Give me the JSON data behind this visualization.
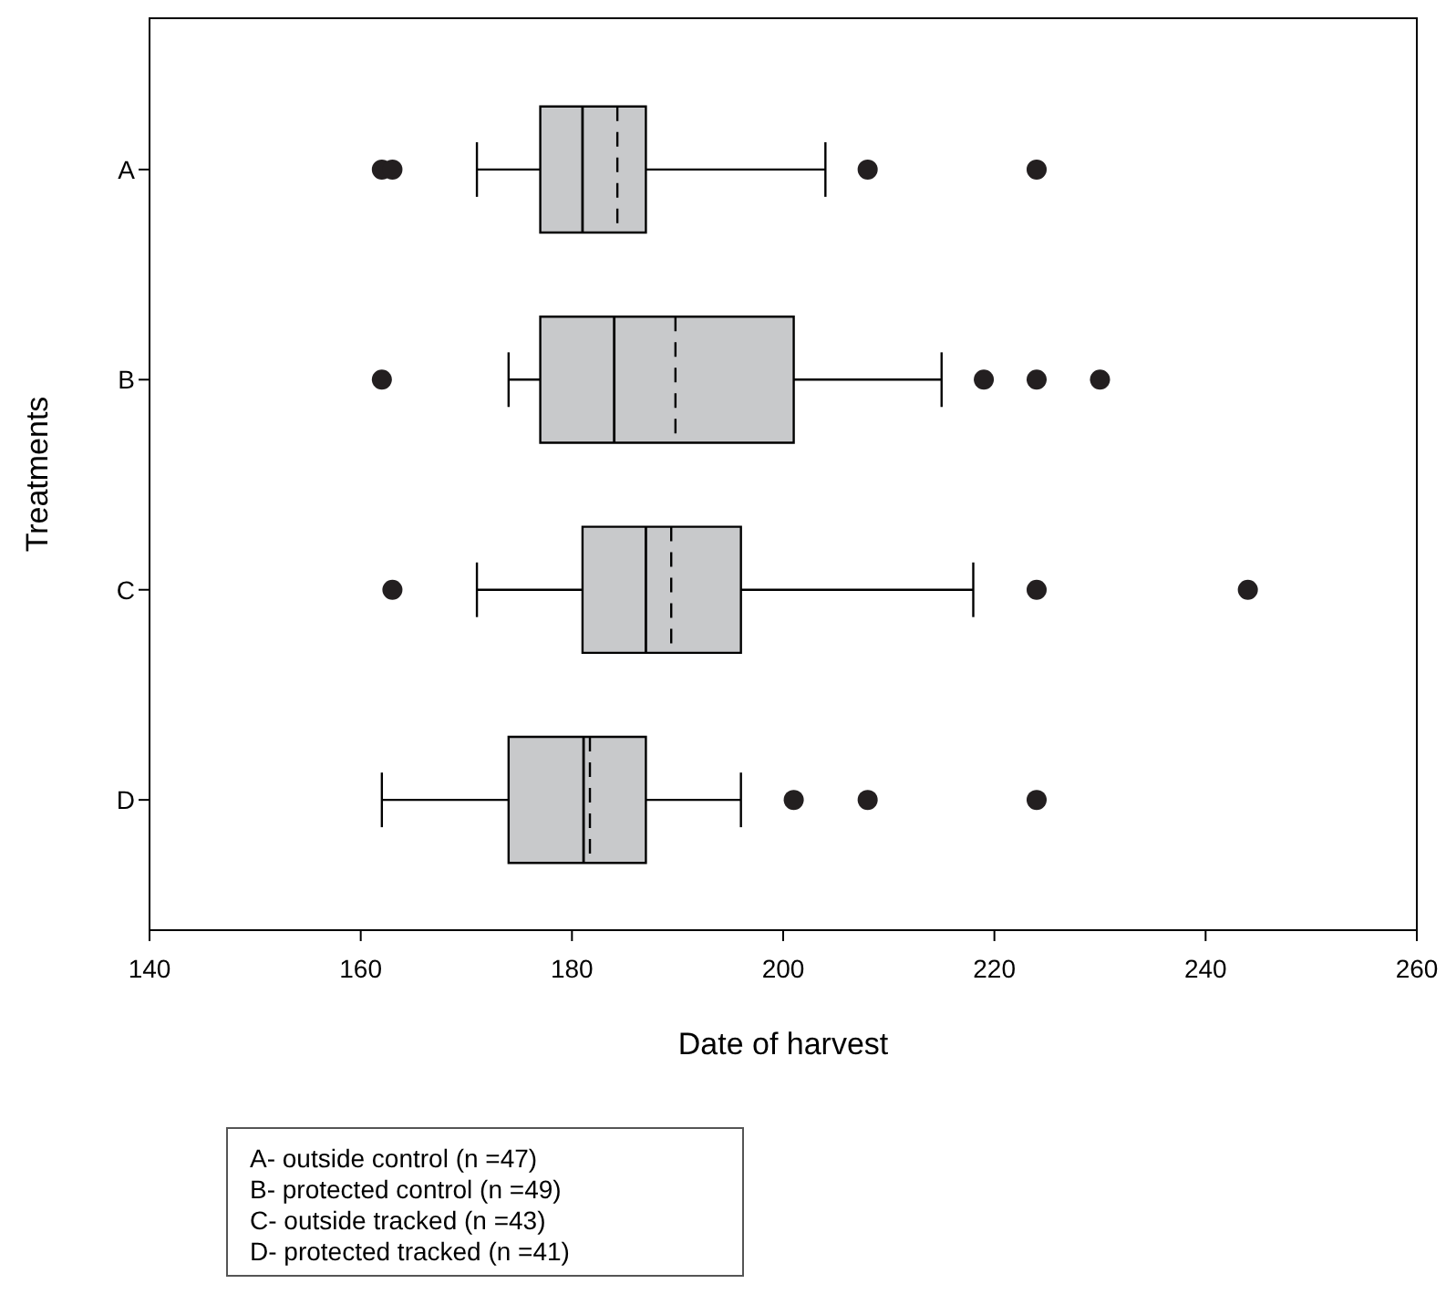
{
  "chart_data": {
    "type": "box",
    "orientation": "horizontal",
    "xlabel": "Date of harvest",
    "ylabel": "Treatments",
    "categories": [
      "A",
      "B",
      "C",
      "D"
    ],
    "color": "#c8c9cb",
    "boxes": [
      {
        "low": 171,
        "q1": 177,
        "median": 181,
        "q3": 187,
        "high": 204,
        "mean": 184.3,
        "outliers": [
          162,
          163,
          208,
          224
        ]
      },
      {
        "low": 174,
        "q1": 177,
        "median": 184,
        "q3": 201,
        "high": 215,
        "mean": 189.8,
        "outliers": [
          162,
          219,
          224,
          230
        ]
      },
      {
        "low": 171,
        "q1": 181,
        "median": 187,
        "q3": 196,
        "high": 218,
        "mean": 189.4,
        "outliers": [
          163,
          224,
          244
        ]
      },
      {
        "low": 162,
        "q1": 174,
        "median": 181.1,
        "q3": 187,
        "high": 196,
        "mean": 181.7,
        "outliers": [
          201,
          208,
          224
        ]
      }
    ],
    "xlim": [
      140,
      260
    ],
    "xticks": [
      140,
      160,
      180,
      200,
      220,
      240,
      260
    ],
    "annotations": [
      "A- outside control (n =47)",
      "B- protected control (n =49)",
      "C- outside tracked (n =43)",
      "D- protected tracked (n =41)"
    ]
  }
}
